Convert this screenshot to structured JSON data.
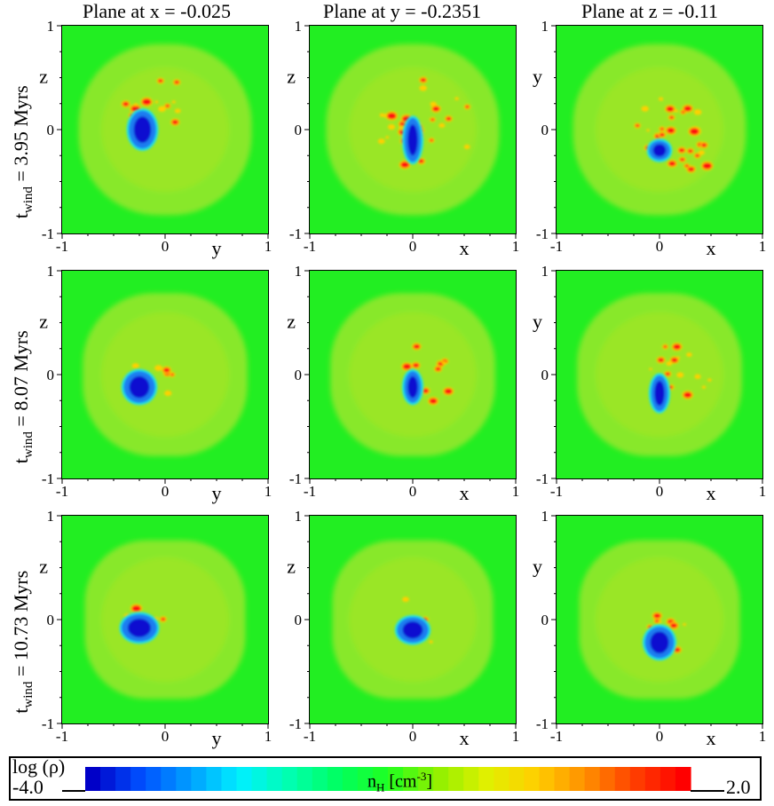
{
  "chart_data": {
    "type": "heatmap",
    "column_titles": [
      "Plane at x = -0.025",
      "Plane at y = -0.2351",
      "Plane at z = -0.11"
    ],
    "row_labels": [
      {
        "text": "t",
        "sub": "wind",
        "rest": " = 3.95 Myrs"
      },
      {
        "text": "t",
        "sub": "wind",
        "rest": " = 8.07 Myrs"
      },
      {
        "text": "t",
        "sub": "wind",
        "rest": " = 10.73 Myrs"
      }
    ],
    "axes": [
      {
        "xlabel": "y",
        "ylabel": "z"
      },
      {
        "xlabel": "x",
        "ylabel": "z"
      },
      {
        "xlabel": "x",
        "ylabel": "y"
      }
    ],
    "xlim": [
      -1,
      1
    ],
    "ylim": [
      -1,
      1
    ],
    "tick_labels": [
      "-1",
      "0",
      "1"
    ],
    "colorbar": {
      "title": "log (ρ)",
      "min_label": "-4.0",
      "max_label": "2.0",
      "label_main": "n",
      "label_sub": "H",
      "label_unit": " [cm",
      "label_sup": "-3",
      "label_end": "]",
      "colors": [
        "#0000c8",
        "#0050ff",
        "#00a0ff",
        "#00f0ff",
        "#00ffb0",
        "#00ff60",
        "#20ff20",
        "#90f000",
        "#e0f000",
        "#ffd000",
        "#ff9000",
        "#ff4000",
        "#ff0000"
      ]
    },
    "colors": {
      "background_field": "#22ee22",
      "bubble_outer": "#88e82a",
      "bubble_inner": "#9ae626",
      "cold_core": "#1010d0",
      "cold_mid": "#1a7df0",
      "cold_edge": "#20e0e8",
      "hot_clump": "#ff1010",
      "warm_clump": "#ffd000"
    }
  }
}
